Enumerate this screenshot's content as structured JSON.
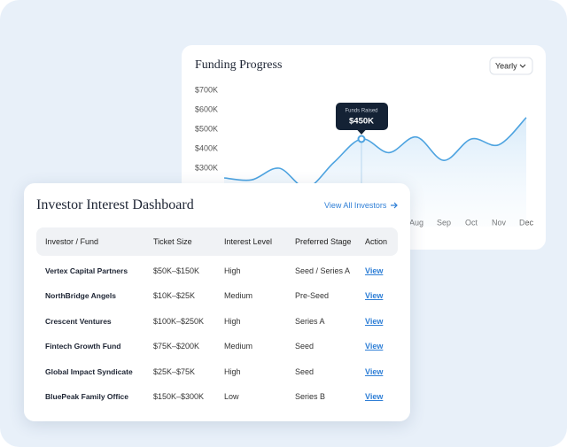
{
  "chart_data": {
    "type": "line",
    "title": "Funding Progress",
    "period": "Yearly",
    "categories": [
      null,
      null,
      null,
      null,
      null,
      null,
      null,
      "Aug",
      "Sep",
      "Oct",
      "Nov",
      "Dec"
    ],
    "values": [
      250000,
      240000,
      300000,
      200000,
      330000,
      450000,
      380000,
      460000,
      340000,
      450000,
      420000,
      560000
    ],
    "color": "#4da3e0",
    "ylim": [
      0,
      700000
    ],
    "yticks": [
      {
        "value": 300000,
        "label": "$300K"
      },
      {
        "value": 400000,
        "label": "$400K"
      },
      {
        "value": 500000,
        "label": "$500K"
      },
      {
        "value": 600000,
        "label": "$600K"
      },
      {
        "value": 700000,
        "label": "$700K"
      }
    ],
    "annotation": {
      "label": "Funds Raised",
      "value": 450000,
      "value_label": "$450K"
    }
  },
  "table": {
    "title": "Investor Interest Dashboard",
    "link": "View All Investors",
    "columns": [
      "Investor / Fund",
      "Ticket Size",
      "Interest Level",
      "Preferred Stage",
      "Action"
    ],
    "rows": [
      [
        "Vertex Capital Partners",
        "$50K–$150K",
        "High",
        "Seed / Series A",
        "View"
      ],
      [
        "NorthBridge Angels",
        "$10K–$25K",
        "Medium",
        "Pre-Seed",
        "View"
      ],
      [
        "Crescent Ventures",
        "$100K–$250K",
        "High",
        "Series A",
        "View"
      ],
      [
        "Fintech Growth Fund",
        "$75K–$200K",
        "Medium",
        "Seed",
        "View"
      ],
      [
        "Global Impact Syndicate",
        "$25K–$75K",
        "High",
        "Seed",
        "View"
      ],
      [
        "BluePeak Family Office",
        "$150K–$300K",
        "Low",
        "Series B",
        "View"
      ]
    ]
  }
}
